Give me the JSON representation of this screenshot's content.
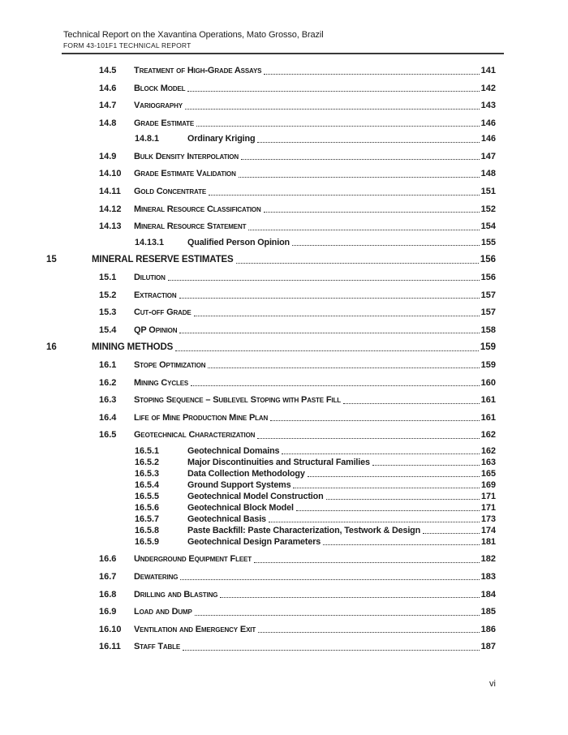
{
  "document": {
    "header": {
      "title": "Technical Report on the Xavantina Operations, Mato Grosso, Brazil",
      "subtitle": "FORM 43-101F1 TECHNICAL REPORT"
    },
    "footer": {
      "page_number": "vi"
    }
  },
  "toc": {
    "entries": [
      {
        "num": "14.5",
        "title": "Treatment of High-Grade Assays",
        "page": "141",
        "level": 2
      },
      {
        "num": "14.6",
        "title": "Block Model",
        "page": "142",
        "level": 2
      },
      {
        "num": "14.7",
        "title": "Variography",
        "page": "143",
        "level": 2
      },
      {
        "num": "14.8",
        "title": "Grade Estimate",
        "page": "146",
        "level": 2
      },
      {
        "num": "14.8.1",
        "title": "Ordinary Kriging",
        "page": "146",
        "level": 3
      },
      {
        "num": "14.9",
        "title": "Bulk Density Interpolation",
        "page": "147",
        "level": 2
      },
      {
        "num": "14.10",
        "title": "Grade Estimate Validation",
        "page": "148",
        "level": 2
      },
      {
        "num": "14.11",
        "title": "Gold Concentrate",
        "page": "151",
        "level": 2
      },
      {
        "num": "14.12",
        "title": "Mineral Resource Classification",
        "page": "152",
        "level": 2
      },
      {
        "num": "14.13",
        "title": "Mineral Resource Statement",
        "page": "154",
        "level": 2
      },
      {
        "num": "14.13.1",
        "title": "Qualified Person Opinion",
        "page": "155",
        "level": 3
      },
      {
        "num": "15",
        "title": "MINERAL RESERVE ESTIMATES",
        "page": "156",
        "level": 1
      },
      {
        "num": "15.1",
        "title": "Dilution",
        "page": "156",
        "level": 2
      },
      {
        "num": "15.2",
        "title": "Extraction",
        "page": "157",
        "level": 2
      },
      {
        "num": "15.3",
        "title": "Cut-off Grade",
        "page": "157",
        "level": 2
      },
      {
        "num": "15.4",
        "title": "QP Opinion",
        "page": "158",
        "level": 2
      },
      {
        "num": "16",
        "title": "MINING METHODS",
        "page": "159",
        "level": 1
      },
      {
        "num": "16.1",
        "title": "Stope Optimization",
        "page": "159",
        "level": 2
      },
      {
        "num": "16.2",
        "title": "Mining Cycles",
        "page": "160",
        "level": 2
      },
      {
        "num": "16.3",
        "title": "Stoping Sequence – Sublevel Stoping with Paste Fill",
        "page": "161",
        "level": 2
      },
      {
        "num": "16.4",
        "title": "Life of Mine Production Mine Plan",
        "page": "161",
        "level": 2
      },
      {
        "num": "16.5",
        "title": "Geotechnical Characterization",
        "page": "162",
        "level": 2
      },
      {
        "num": "16.5.1",
        "title": "Geotechnical Domains",
        "page": "162",
        "level": 3
      },
      {
        "num": "16.5.2",
        "title": "Major Discontinuities and Structural Families",
        "page": "163",
        "level": 3
      },
      {
        "num": "16.5.3",
        "title": "Data Collection Methodology",
        "page": "165",
        "level": 3
      },
      {
        "num": "16.5.4",
        "title": "Ground Support Systems",
        "page": "169",
        "level": 3
      },
      {
        "num": "16.5.5",
        "title": "Geotechnical Model Construction",
        "page": "171",
        "level": 3
      },
      {
        "num": "16.5.6",
        "title": "Geotechnical Block Model",
        "page": "171",
        "level": 3
      },
      {
        "num": "16.5.7",
        "title": "Geotechnical Basis",
        "page": "173",
        "level": 3
      },
      {
        "num": "16.5.8",
        "title": "Paste Backfill: Paste Characterization, Testwork & Design",
        "page": "174",
        "level": 3
      },
      {
        "num": "16.5.9",
        "title": "Geotechnical Design Parameters",
        "page": "181",
        "level": 3
      },
      {
        "num": "16.6",
        "title": "Underground Equipment Fleet",
        "page": "182",
        "level": 2
      },
      {
        "num": "16.7",
        "title": "Dewatering",
        "page": "183",
        "level": 2
      },
      {
        "num": "16.8",
        "title": "Drilling and Blasting",
        "page": "184",
        "level": 2
      },
      {
        "num": "16.9",
        "title": "Load and Dump",
        "page": "185",
        "level": 2
      },
      {
        "num": "16.10",
        "title": "Ventilation and Emergency Exit",
        "page": "186",
        "level": 2
      },
      {
        "num": "16.11",
        "title": "Staff Table",
        "page": "187",
        "level": 2
      }
    ]
  },
  "colors": {
    "background": "#ffffff",
    "text": "#1a1a1a",
    "header_rule": "#3a3a3a",
    "dot_leader": "#2e2e2e"
  }
}
